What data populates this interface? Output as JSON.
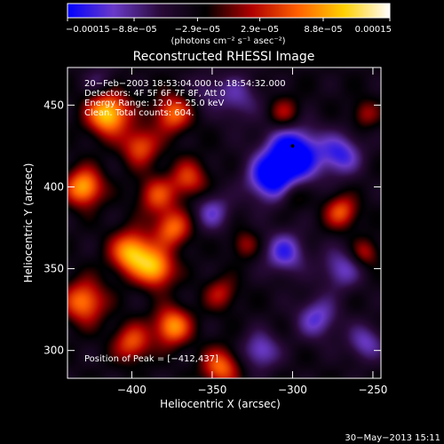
{
  "chart_data": {
    "type": "heatmap",
    "title": "Reconstructed RHESSI Image",
    "xlabel": "Heliocentric X (arcsec)",
    "ylabel": "Heliocentric Y (arcsec)",
    "xlim": [
      -440,
      -245
    ],
    "ylim": [
      283,
      473
    ],
    "x_ticks": [
      -400,
      -350,
      -300,
      -250
    ],
    "x_tick_labels": [
      "−400",
      "−350",
      "−300",
      "−250"
    ],
    "y_ticks": [
      300,
      350,
      400,
      450
    ],
    "y_tick_labels": [
      "300",
      "350",
      "400",
      "450"
    ],
    "colorbar": {
      "range": [
        -0.00015,
        0.00015
      ],
      "ticks": [
        -0.00015,
        -8.8e-05,
        -2.9e-05,
        2.9e-05,
        8.8e-05,
        0.00015
      ],
      "tick_labels": [
        "−0.00015",
        "−8.8e−05",
        "−2.9e−05",
        "2.9e−05",
        "8.8e−05",
        "0.00015"
      ],
      "unit_label": "(photons cm⁻² s⁻¹ asec⁻²)",
      "colors": [
        "#0000ff",
        "#6a3ac8",
        "#2a0a3a",
        "#000000",
        "#b00000",
        "#ff6000",
        "#ffd000",
        "#ffffff"
      ]
    },
    "annotations": [
      "20−Feb−2003 18:53:04.000 to 18:54:32.000",
      "Detectors: 4F 5F 6F 7F 8F, Att 0",
      "Energy Range: 12.0 − 25.0 keV",
      "Clean.  Total counts: 604."
    ],
    "peak_label": "Position of Peak = [−412,437]",
    "marker": {
      "x": -300,
      "y": 425
    },
    "blobs": [
      {
        "x": -415,
        "y": 445,
        "value": 0.00015,
        "sigma": 9
      },
      {
        "x": -430,
        "y": 400,
        "value": 0.00013,
        "sigma": 8
      },
      {
        "x": -395,
        "y": 425,
        "value": 9e-05,
        "sigma": 8
      },
      {
        "x": -385,
        "y": 395,
        "value": 8e-05,
        "sigma": 8
      },
      {
        "x": -375,
        "y": 445,
        "value": 0.0001,
        "sigma": 8
      },
      {
        "x": -400,
        "y": 360,
        "value": 0.00014,
        "sigma": 9
      },
      {
        "x": -385,
        "y": 350,
        "value": 0.00012,
        "sigma": 8
      },
      {
        "x": -375,
        "y": 375,
        "value": 0.0001,
        "sigma": 8
      },
      {
        "x": -365,
        "y": 405,
        "value": 8e-05,
        "sigma": 8
      },
      {
        "x": -430,
        "y": 330,
        "value": 0.00011,
        "sigma": 9
      },
      {
        "x": -375,
        "y": 315,
        "value": 0.00012,
        "sigma": 8
      },
      {
        "x": -400,
        "y": 305,
        "value": 9e-05,
        "sigma": 8
      },
      {
        "x": -345,
        "y": 290,
        "value": 0.0001,
        "sigma": 8
      },
      {
        "x": -345,
        "y": 335,
        "value": 6e-05,
        "sigma": 7
      },
      {
        "x": -330,
        "y": 365,
        "value": 5e-05,
        "sigma": 6
      },
      {
        "x": -305,
        "y": 445,
        "value": 6e-05,
        "sigma": 7
      },
      {
        "x": -300,
        "y": 395,
        "value": 4e-05,
        "sigma": 6
      },
      {
        "x": -270,
        "y": 385,
        "value": 9e-05,
        "sigma": 7
      },
      {
        "x": -255,
        "y": 360,
        "value": 6e-05,
        "sigma": 6
      },
      {
        "x": -255,
        "y": 445,
        "value": 5e-05,
        "sigma": 6
      },
      {
        "x": -335,
        "y": 455,
        "value": -6e-05,
        "sigma": 10
      },
      {
        "x": -300,
        "y": 420,
        "value": -0.00015,
        "sigma": 12
      },
      {
        "x": -315,
        "y": 405,
        "value": -0.00011,
        "sigma": 10
      },
      {
        "x": -270,
        "y": 420,
        "value": -9e-05,
        "sigma": 9
      },
      {
        "x": -305,
        "y": 360,
        "value": -9e-05,
        "sigma": 9
      },
      {
        "x": -270,
        "y": 350,
        "value": -7e-05,
        "sigma": 9
      },
      {
        "x": -285,
        "y": 320,
        "value": -8e-05,
        "sigma": 9
      },
      {
        "x": -255,
        "y": 305,
        "value": -7e-05,
        "sigma": 8
      },
      {
        "x": -320,
        "y": 300,
        "value": -8e-05,
        "sigma": 8
      },
      {
        "x": -350,
        "y": 385,
        "value": -7e-05,
        "sigma": 8
      },
      {
        "x": -420,
        "y": 465,
        "value": -4e-05,
        "sigma": 7
      },
      {
        "x": -355,
        "y": 460,
        "value": -4e-05,
        "sigma": 7
      }
    ]
  },
  "footer": {
    "timestamp": "30−May−2013 15:11"
  }
}
